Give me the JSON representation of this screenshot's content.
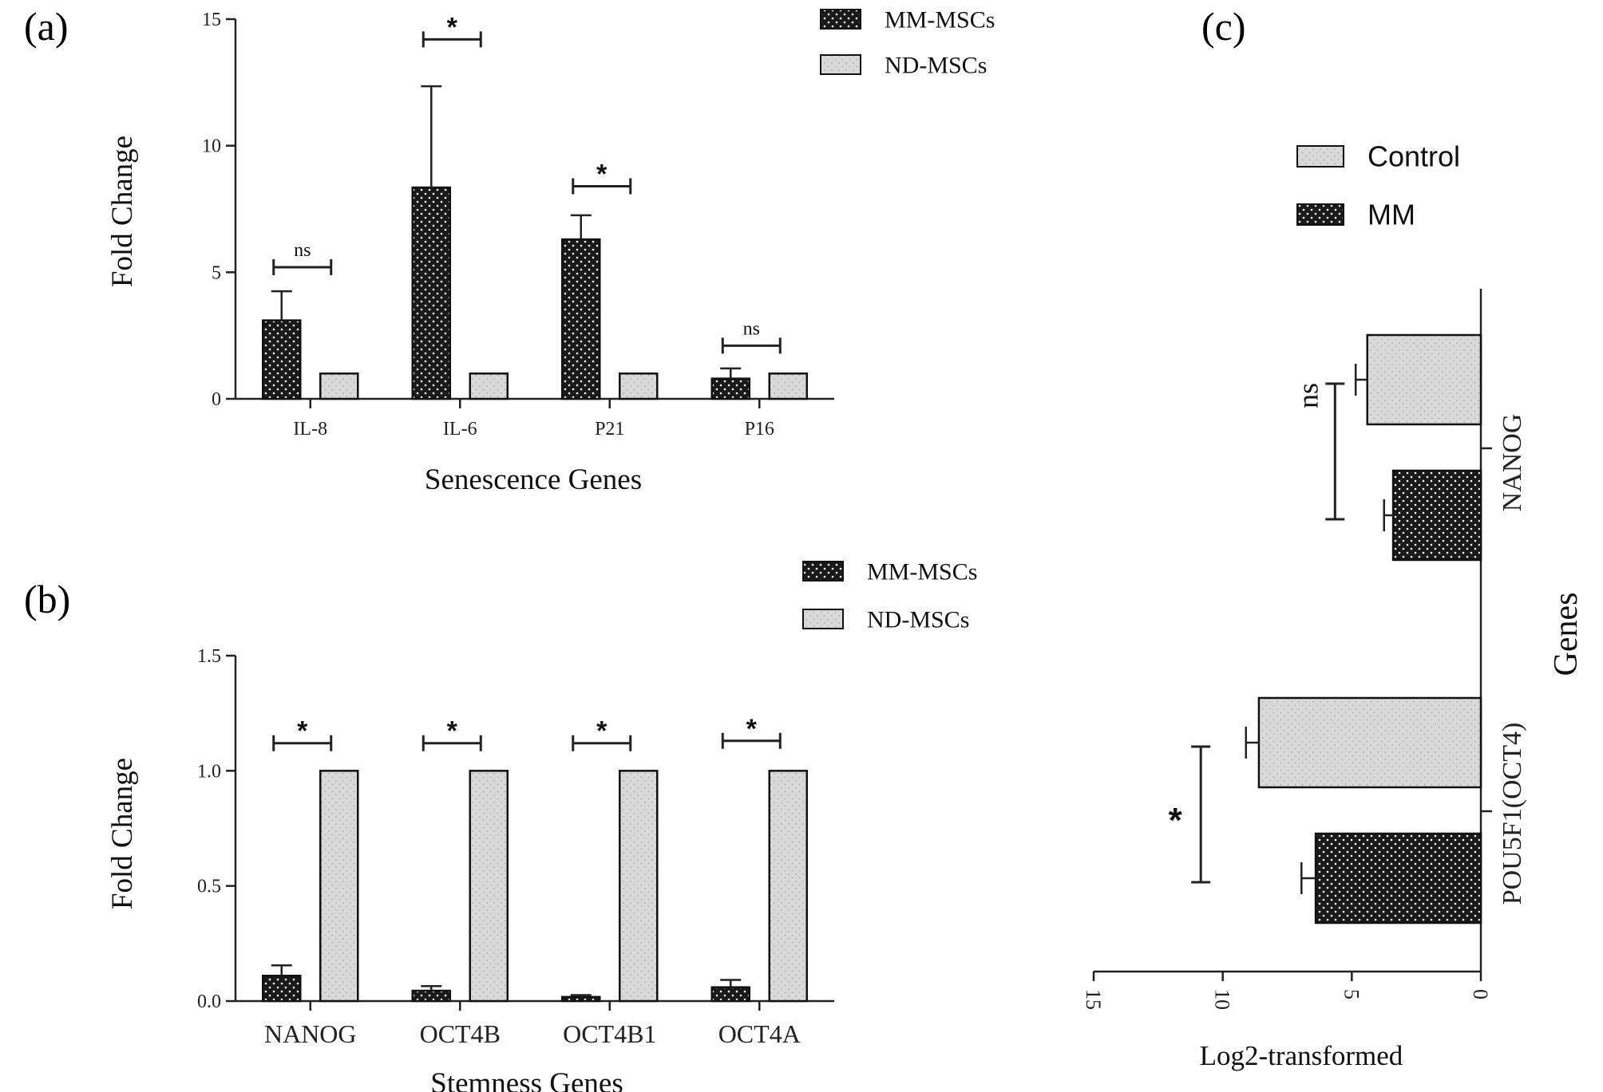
{
  "colors": {
    "dark_series": "#1a1a1a",
    "dark_dots": "#ffffff",
    "light_series": "#d9d9d9",
    "light_dots": "#a8a8a8",
    "axis": "#222222"
  },
  "chart_data": [
    {
      "panel_label": "(a)",
      "type": "bar",
      "orientation": "vertical",
      "xlabel": "Senescence Genes",
      "ylabel": "Fold Change",
      "ylim": [
        0,
        15
      ],
      "yticks": [
        0,
        5,
        10,
        15
      ],
      "ytick_labels": [
        "0",
        "5",
        "10",
        "15"
      ],
      "legend_position": "top-right",
      "categories": [
        "IL-8",
        "IL-6",
        "P21",
        "P16"
      ],
      "series": [
        {
          "name": "MM-MSCs",
          "style": "dark",
          "values": [
            3.1,
            8.35,
            6.3,
            0.8
          ],
          "errors": [
            1.15,
            4.0,
            0.95,
            0.4
          ]
        },
        {
          "name": "ND-MSCs",
          "style": "light",
          "values": [
            1.0,
            1.0,
            1.0,
            1.0
          ],
          "errors": [
            0,
            0,
            0,
            0
          ]
        }
      ],
      "annotations": [
        {
          "category": "IL-8",
          "label": "ns",
          "y": 5.2
        },
        {
          "category": "IL-6",
          "label": "*",
          "y": 14.2
        },
        {
          "category": "P21",
          "label": "*",
          "y": 8.4
        },
        {
          "category": "P16",
          "label": "ns",
          "y": 2.1
        }
      ]
    },
    {
      "panel_label": "(b)",
      "type": "bar",
      "orientation": "vertical",
      "xlabel": "Stemness Genes",
      "ylabel": "Fold Change",
      "ylim": [
        0,
        1.5
      ],
      "yticks": [
        0,
        0.5,
        1.0,
        1.5
      ],
      "ytick_labels": [
        "0.0",
        "0.5",
        "1.0",
        "1.5"
      ],
      "legend_position": "top-right",
      "categories": [
        "NANOG",
        "OCT4B",
        "OCT4B1",
        "OCT4A"
      ],
      "series": [
        {
          "name": "MM-MSCs",
          "style": "dark",
          "values": [
            0.11,
            0.045,
            0.018,
            0.06
          ],
          "errors": [
            0.045,
            0.02,
            0.008,
            0.032
          ]
        },
        {
          "name": "ND-MSCs",
          "style": "light",
          "values": [
            1.0,
            1.0,
            1.0,
            1.0
          ],
          "errors": [
            0,
            0,
            0,
            0
          ]
        }
      ],
      "annotations": [
        {
          "category": "NANOG",
          "label": "*",
          "y": 1.12
        },
        {
          "category": "OCT4B",
          "label": "*",
          "y": 1.12
        },
        {
          "category": "OCT4B1",
          "label": "*",
          "y": 1.12
        },
        {
          "category": "OCT4A",
          "label": "*",
          "y": 1.13
        }
      ]
    },
    {
      "panel_label": "(c)",
      "type": "bar",
      "orientation": "horizontal",
      "xlabel": "Log2-transformed",
      "ylabel": "Genes",
      "xlim": [
        0,
        15
      ],
      "xticks": [
        0,
        5,
        10,
        15
      ],
      "xtick_labels": [
        "0",
        "5",
        "10",
        "15"
      ],
      "x_reversed": true,
      "legend_position": "top",
      "categories": [
        "NANOG",
        "POU5F1(OCT4)"
      ],
      "series": [
        {
          "name": "Control",
          "style": "light",
          "values": [
            4.4,
            8.6
          ],
          "errors": [
            0.45,
            0.5
          ]
        },
        {
          "name": "MM",
          "style": "dark",
          "values": [
            3.4,
            6.4
          ],
          "errors": [
            0.35,
            0.55
          ]
        }
      ],
      "annotations": [
        {
          "category": "NANOG",
          "label": "ns",
          "x": 5.65
        },
        {
          "category": "POU5F1(OCT4)",
          "label": "*",
          "x": 10.85
        }
      ]
    }
  ]
}
